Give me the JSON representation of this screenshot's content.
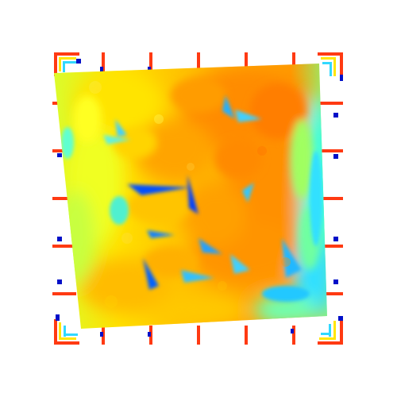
{
  "image": {
    "background": "#ffffff",
    "colormap": [
      "#0000aa",
      "#0050ff",
      "#00c8ff",
      "#40ffe0",
      "#a0ff60",
      "#ffff00",
      "#ffc400",
      "#ff9a00",
      "#ff7a00"
    ],
    "marker_colors": {
      "red": "#ff3a12",
      "blue": "#0010c8",
      "cyan": "#30d8ff",
      "yellow": "#ffe600"
    }
  }
}
